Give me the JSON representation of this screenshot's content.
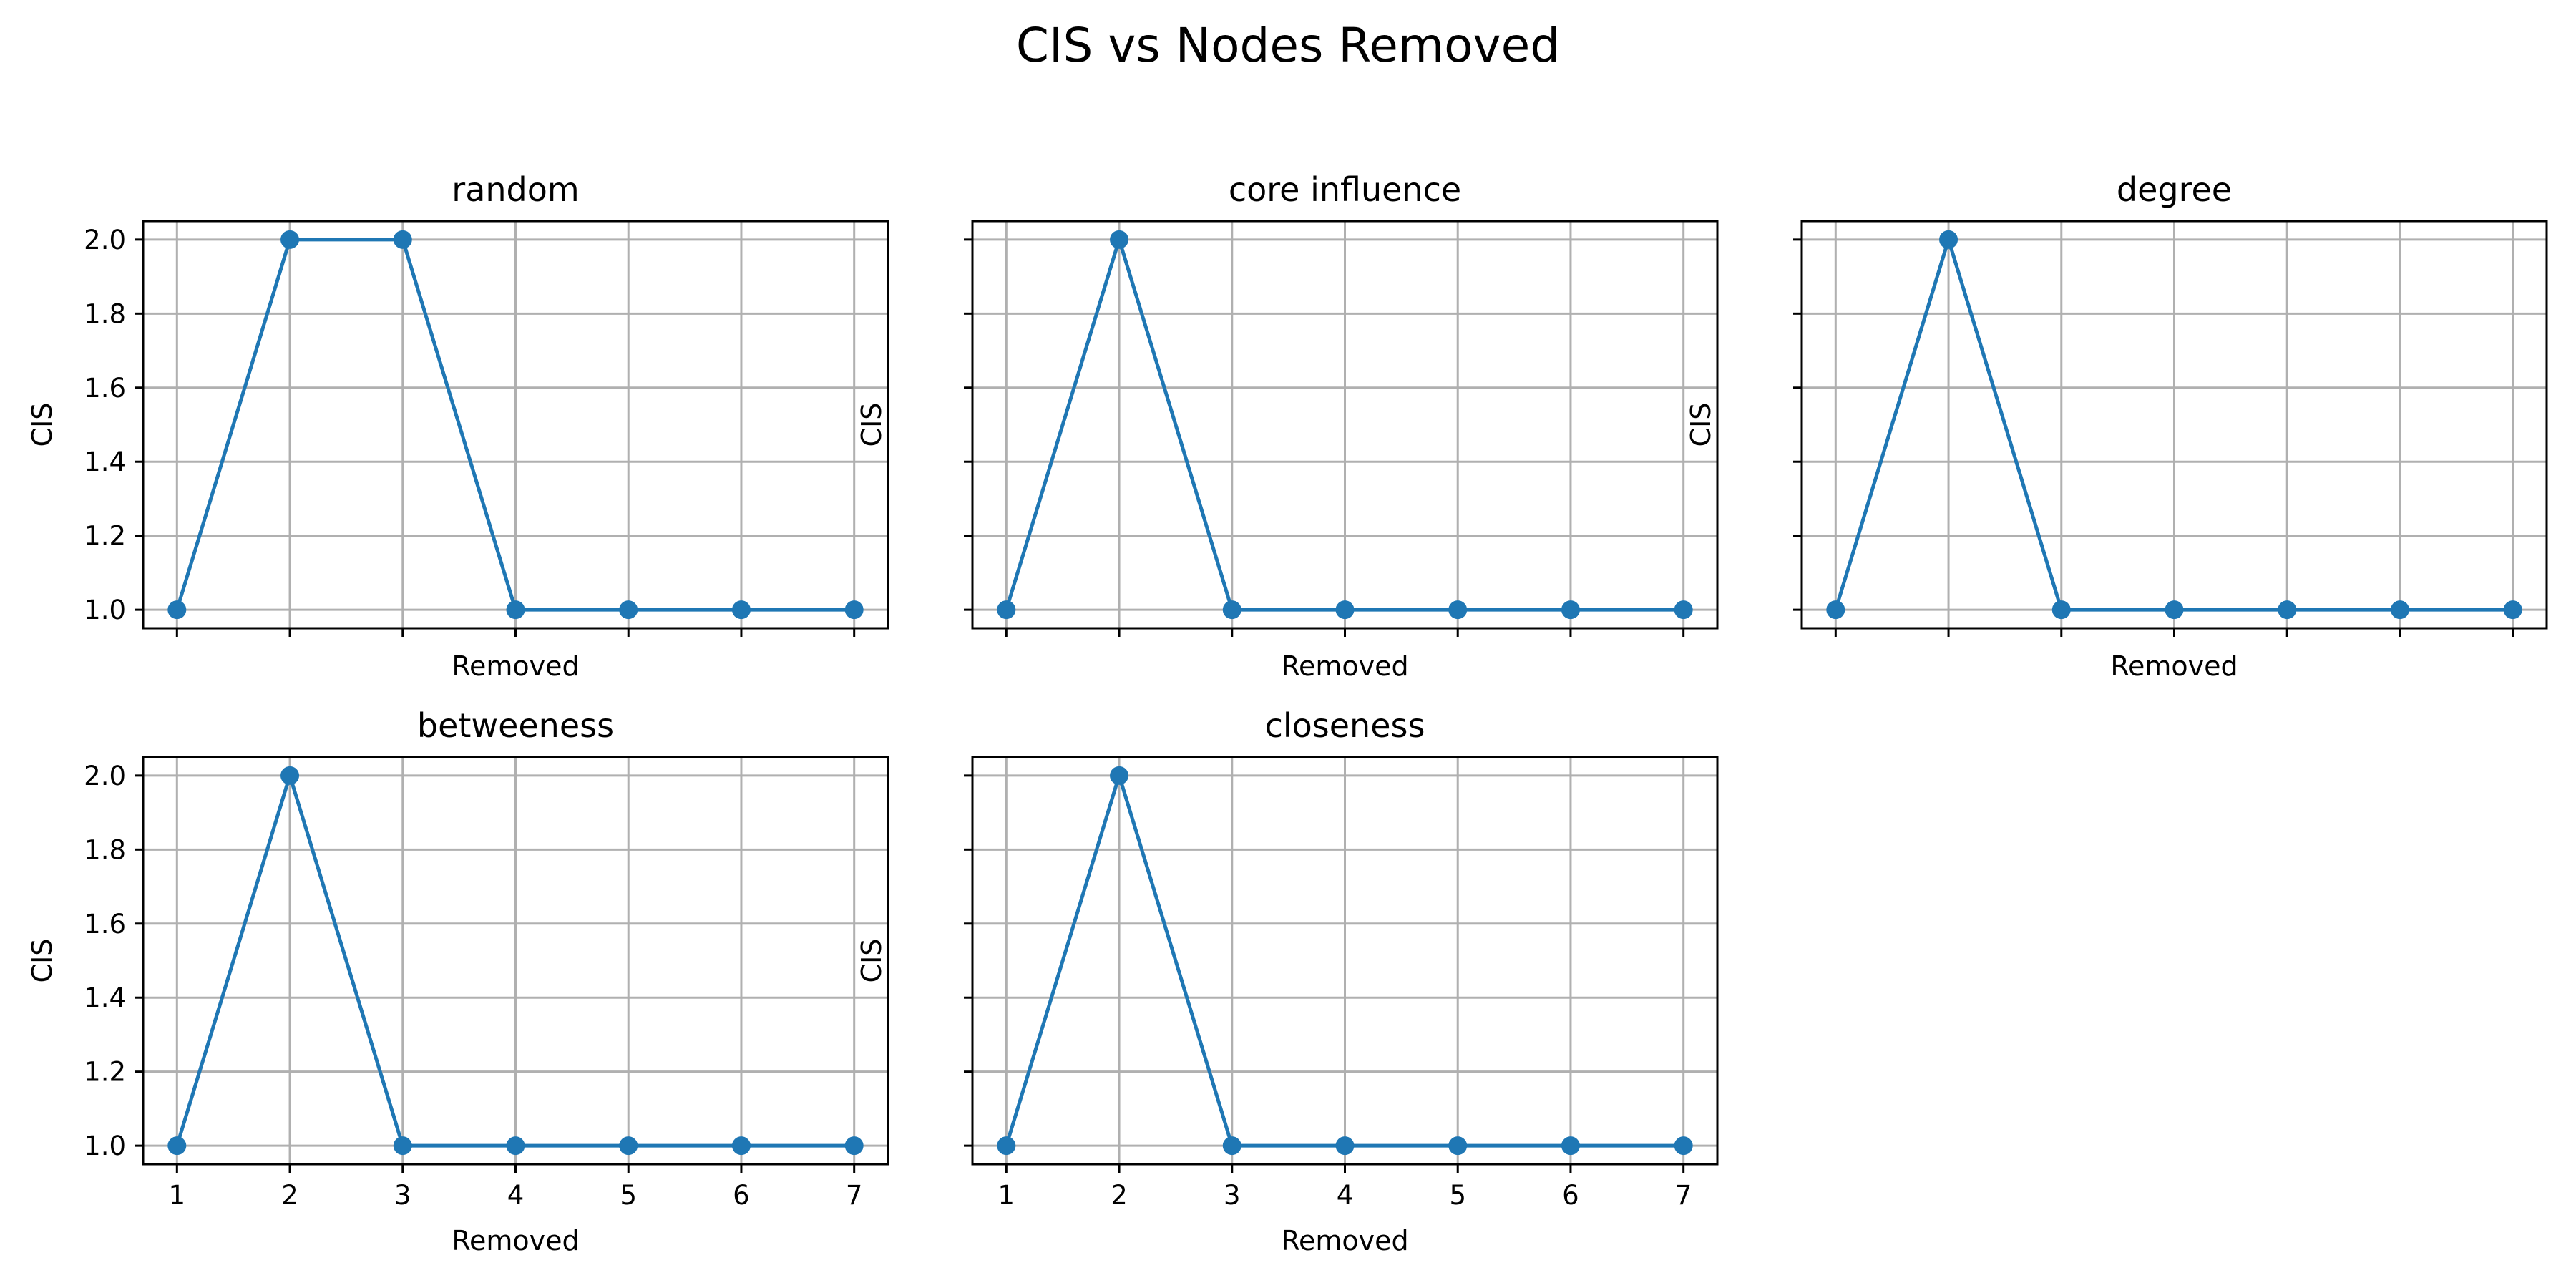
{
  "figure": {
    "title": "CIS vs Nodes Removed"
  },
  "colors": {
    "series": "#1f77b4",
    "grid": "#b0b0b0",
    "frame": "#000000"
  },
  "chart_data": [
    {
      "type": "line",
      "title": "random",
      "xlabel": "Removed",
      "ylabel": "CIS",
      "x": [
        1,
        2,
        3,
        4,
        5,
        6,
        7
      ],
      "series": [
        {
          "values": [
            1.0,
            2.0,
            2.0,
            1.0,
            1.0,
            1.0,
            1.0
          ]
        }
      ],
      "xlim": [
        0.7,
        7.3
      ],
      "ylim": [
        0.95,
        2.05
      ],
      "yticks": [
        "1.0",
        "1.2",
        "1.4",
        "1.6",
        "1.8",
        "2.0"
      ],
      "xticks": [
        "1",
        "2",
        "3",
        "4",
        "5",
        "6",
        "7"
      ],
      "show_xticklabels": false,
      "show_yticklabels": true,
      "grid": true,
      "marker": "circle"
    },
    {
      "type": "line",
      "title": "core influence",
      "xlabel": "Removed",
      "ylabel": "CIS",
      "x": [
        1,
        2,
        3,
        4,
        5,
        6,
        7
      ],
      "series": [
        {
          "values": [
            1.0,
            2.0,
            1.0,
            1.0,
            1.0,
            1.0,
            1.0
          ]
        }
      ],
      "xlim": [
        0.7,
        7.3
      ],
      "ylim": [
        0.95,
        2.05
      ],
      "yticks": [
        "1.0",
        "1.2",
        "1.4",
        "1.6",
        "1.8",
        "2.0"
      ],
      "xticks": [
        "1",
        "2",
        "3",
        "4",
        "5",
        "6",
        "7"
      ],
      "show_xticklabels": false,
      "show_yticklabels": false,
      "grid": true,
      "marker": "circle"
    },
    {
      "type": "line",
      "title": "degree",
      "xlabel": "Removed",
      "ylabel": "CIS",
      "x": [
        1,
        2,
        3,
        4,
        5,
        6,
        7
      ],
      "series": [
        {
          "values": [
            1.0,
            2.0,
            1.0,
            1.0,
            1.0,
            1.0,
            1.0
          ]
        }
      ],
      "xlim": [
        0.7,
        7.3
      ],
      "ylim": [
        0.95,
        2.05
      ],
      "yticks": [
        "1.0",
        "1.2",
        "1.4",
        "1.6",
        "1.8",
        "2.0"
      ],
      "xticks": [
        "1",
        "2",
        "3",
        "4",
        "5",
        "6",
        "7"
      ],
      "show_xticklabels": false,
      "show_yticklabels": false,
      "grid": true,
      "marker": "circle"
    },
    {
      "type": "line",
      "title": "betweeness",
      "xlabel": "Removed",
      "ylabel": "CIS",
      "x": [
        1,
        2,
        3,
        4,
        5,
        6,
        7
      ],
      "series": [
        {
          "values": [
            1.0,
            2.0,
            1.0,
            1.0,
            1.0,
            1.0,
            1.0
          ]
        }
      ],
      "xlim": [
        0.7,
        7.3
      ],
      "ylim": [
        0.95,
        2.05
      ],
      "yticks": [
        "1.0",
        "1.2",
        "1.4",
        "1.6",
        "1.8",
        "2.0"
      ],
      "xticks": [
        "1",
        "2",
        "3",
        "4",
        "5",
        "6",
        "7"
      ],
      "show_xticklabels": true,
      "show_yticklabels": true,
      "grid": true,
      "marker": "circle"
    },
    {
      "type": "line",
      "title": "closeness",
      "xlabel": "Removed",
      "ylabel": "CIS",
      "x": [
        1,
        2,
        3,
        4,
        5,
        6,
        7
      ],
      "series": [
        {
          "values": [
            1.0,
            2.0,
            1.0,
            1.0,
            1.0,
            1.0,
            1.0
          ]
        }
      ],
      "xlim": [
        0.7,
        7.3
      ],
      "ylim": [
        0.95,
        2.05
      ],
      "yticks": [
        "1.0",
        "1.2",
        "1.4",
        "1.6",
        "1.8",
        "2.0"
      ],
      "xticks": [
        "1",
        "2",
        "3",
        "4",
        "5",
        "6",
        "7"
      ],
      "show_xticklabels": true,
      "show_yticklabels": false,
      "grid": true,
      "marker": "circle"
    }
  ]
}
